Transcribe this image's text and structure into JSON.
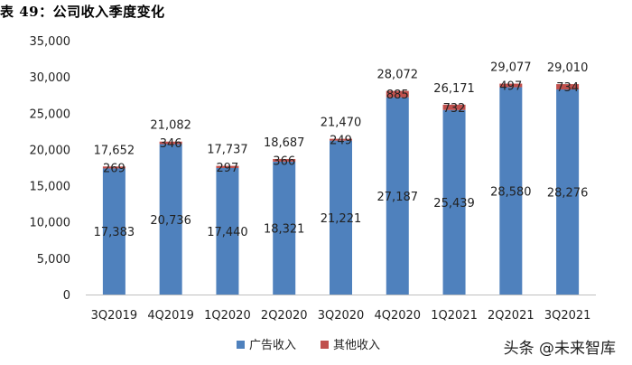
{
  "header": {
    "title": "表 49：公司收入季度变化"
  },
  "watermark": {
    "text": "头条 @未来智库"
  },
  "chart_data": {
    "type": "bar",
    "stacked": true,
    "categories": [
      "3Q2019",
      "4Q2019",
      "1Q2020",
      "2Q2020",
      "3Q2020",
      "4Q2020",
      "1Q2021",
      "2Q2021",
      "3Q2021"
    ],
    "series": [
      {
        "name": "广告收入",
        "color": "#4F81BD",
        "values": [
          17383,
          20736,
          17440,
          18321,
          21221,
          27187,
          25439,
          28580,
          28276
        ]
      },
      {
        "name": "其他收入",
        "color": "#C0504D",
        "values": [
          269,
          346,
          297,
          366,
          249,
          885,
          732,
          497,
          734
        ]
      }
    ],
    "totals": [
      17652,
      21082,
      17737,
      18687,
      21470,
      28072,
      26171,
      29077,
      29010
    ],
    "y_ticks": [
      "0",
      "5,000",
      "10,000",
      "15,000",
      "20,000",
      "25,000",
      "30,000",
      "35,000"
    ],
    "ylim": [
      0,
      35000
    ],
    "legend_position": "bottom",
    "grid": false
  }
}
